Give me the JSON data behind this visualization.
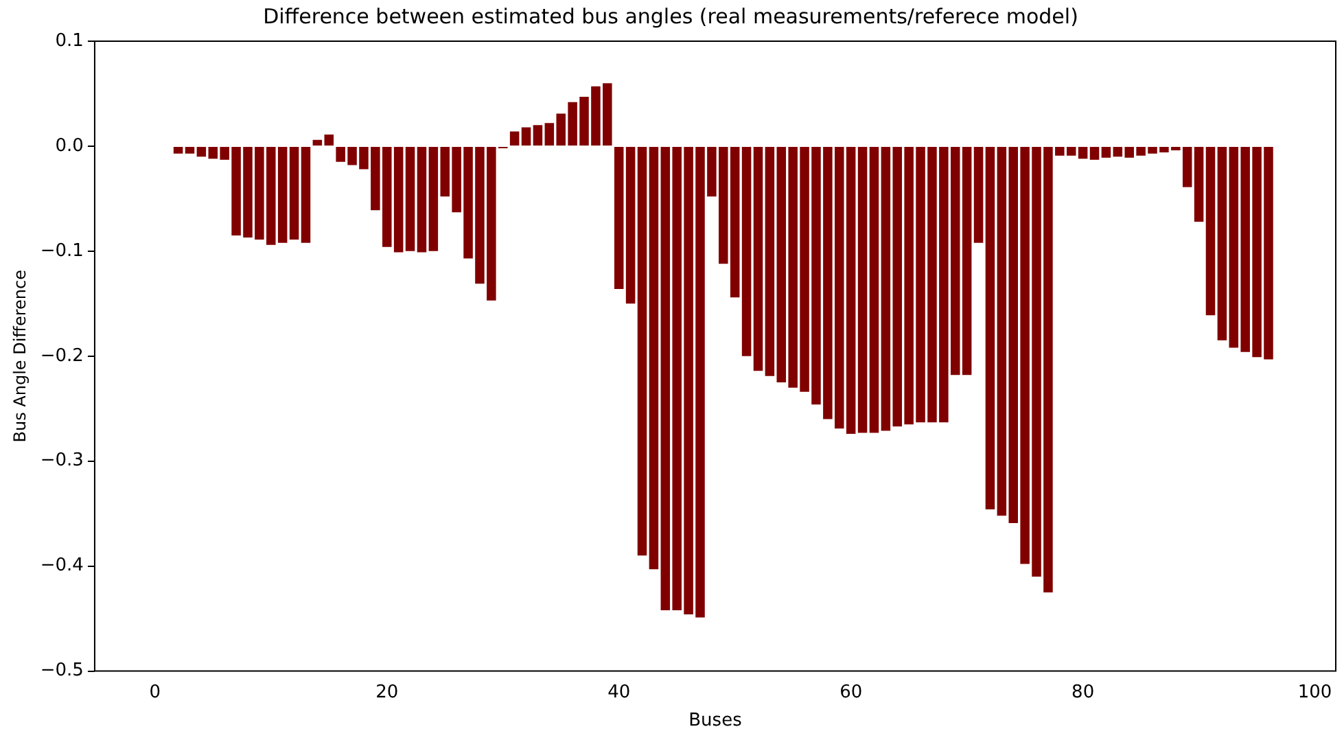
{
  "chart_data": {
    "type": "bar",
    "title": "Difference between estimated bus angles (real measurements/referece model)",
    "xlabel": "Buses",
    "ylabel": "Bus Angle Difference",
    "x": [
      2,
      3,
      4,
      5,
      6,
      7,
      8,
      9,
      10,
      11,
      12,
      13,
      14,
      15,
      16,
      17,
      18,
      19,
      20,
      21,
      22,
      23,
      24,
      25,
      26,
      27,
      28,
      29,
      30,
      31,
      32,
      33,
      34,
      35,
      36,
      37,
      38,
      39,
      40,
      41,
      42,
      43,
      44,
      45,
      46,
      47,
      48,
      49,
      50,
      51,
      52,
      53,
      54,
      55,
      56,
      57,
      58,
      59,
      60,
      61,
      62,
      63,
      64,
      65,
      66,
      67,
      68,
      69,
      70,
      71,
      72,
      73,
      74,
      75,
      76,
      77,
      78,
      79,
      80,
      81,
      82,
      83,
      84,
      85,
      86,
      87,
      88,
      89,
      90,
      91,
      92,
      93,
      94,
      95,
      96
    ],
    "values": [
      -0.007,
      -0.007,
      -0.01,
      -0.012,
      -0.013,
      -0.085,
      -0.087,
      -0.089,
      -0.094,
      -0.092,
      -0.089,
      -0.092,
      0.006,
      0.011,
      -0.015,
      -0.018,
      -0.022,
      -0.061,
      -0.096,
      -0.101,
      -0.1,
      -0.101,
      -0.1,
      -0.048,
      -0.063,
      -0.107,
      -0.131,
      -0.147,
      -0.002,
      0.014,
      0.018,
      0.02,
      0.022,
      0.031,
      0.042,
      0.047,
      0.057,
      0.06,
      -0.136,
      -0.15,
      -0.39,
      -0.403,
      -0.442,
      -0.442,
      -0.446,
      -0.449,
      -0.048,
      -0.112,
      -0.144,
      -0.2,
      -0.214,
      -0.219,
      -0.225,
      -0.23,
      -0.234,
      -0.246,
      -0.26,
      -0.269,
      -0.274,
      -0.273,
      -0.273,
      -0.271,
      -0.267,
      -0.265,
      -0.263,
      -0.263,
      -0.263,
      -0.218,
      -0.218,
      -0.092,
      -0.346,
      -0.352,
      -0.359,
      -0.398,
      -0.41,
      -0.425,
      -0.009,
      -0.009,
      -0.012,
      -0.013,
      -0.011,
      -0.01,
      -0.011,
      -0.009,
      -0.007,
      -0.006,
      -0.004,
      -0.039,
      -0.072,
      -0.161,
      -0.185,
      -0.192,
      -0.196,
      -0.201,
      -0.203
    ],
    "color": "#800000",
    "xlim": [
      -5.2,
      101.8
    ],
    "xticks": [
      0,
      20,
      40,
      60,
      80,
      100
    ],
    "ylim": [
      -0.5,
      0.1
    ],
    "yticks": [
      {
        "value": -0.5,
        "label": "−0.5"
      },
      {
        "value": -0.4,
        "label": "−0.4"
      },
      {
        "value": -0.3,
        "label": "−0.3"
      },
      {
        "value": -0.2,
        "label": "−0.2"
      },
      {
        "value": -0.1,
        "label": "−0.1"
      },
      {
        "value": 0,
        "label": "0.0"
      },
      {
        "value": 0.1,
        "label": "0.1"
      }
    ],
    "grid": false,
    "legend": false
  }
}
